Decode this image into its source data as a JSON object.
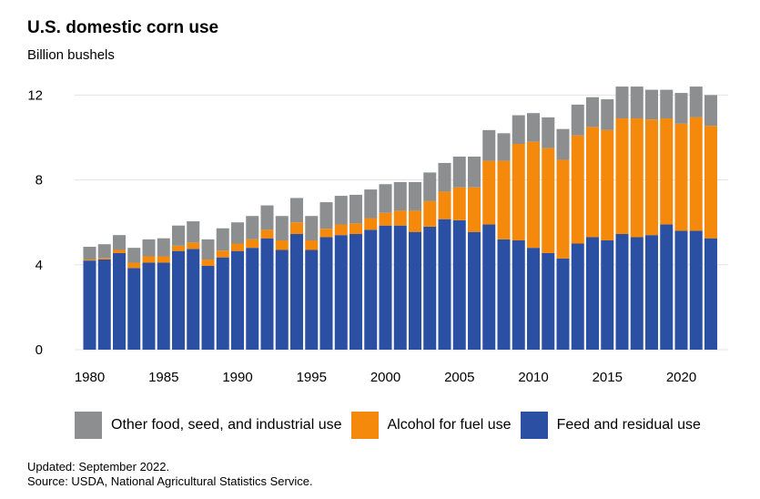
{
  "chart_data": {
    "type": "bar",
    "stacked": true,
    "title": "U.S. domestic corn use",
    "subtitle": "Billion bushels",
    "ylim": [
      0,
      12.4
    ],
    "yticks": [
      0,
      4,
      8,
      12
    ],
    "xticks": [
      1980,
      1985,
      1990,
      1995,
      2000,
      2005,
      2010,
      2015,
      2020
    ],
    "grid": true,
    "legend_position": "bottom",
    "categories": [
      1980,
      1981,
      1982,
      1983,
      1984,
      1985,
      1986,
      1987,
      1988,
      1989,
      1990,
      1991,
      1992,
      1993,
      1994,
      1995,
      1996,
      1997,
      1998,
      1999,
      2000,
      2001,
      2002,
      2003,
      2004,
      2005,
      2006,
      2007,
      2008,
      2009,
      2010,
      2011,
      2012,
      2013,
      2014,
      2015,
      2016,
      2017,
      2018,
      2019,
      2020,
      2021,
      2022
    ],
    "series": [
      {
        "name": "Feed and residual use",
        "color": "#2a4fa3",
        "values": [
          4.2,
          4.25,
          4.55,
          3.85,
          4.1,
          4.1,
          4.65,
          4.75,
          3.95,
          4.35,
          4.65,
          4.8,
          5.25,
          4.7,
          5.45,
          4.7,
          5.3,
          5.4,
          5.45,
          5.65,
          5.85,
          5.85,
          5.55,
          5.8,
          6.15,
          6.1,
          5.55,
          5.9,
          5.2,
          5.15,
          4.8,
          4.55,
          4.3,
          5.0,
          5.3,
          5.15,
          5.45,
          5.3,
          5.4,
          5.9,
          5.6,
          5.6,
          5.25
        ]
      },
      {
        "name": "Alcohol for fuel use",
        "color": "#f5890b",
        "values": [
          0.05,
          0.07,
          0.15,
          0.25,
          0.3,
          0.3,
          0.25,
          0.3,
          0.3,
          0.32,
          0.35,
          0.4,
          0.4,
          0.45,
          0.55,
          0.45,
          0.4,
          0.5,
          0.5,
          0.55,
          0.6,
          0.7,
          1.0,
          1.2,
          1.3,
          1.55,
          2.1,
          3.0,
          3.7,
          4.55,
          5.0,
          4.95,
          4.65,
          5.1,
          5.2,
          5.2,
          5.45,
          5.6,
          5.45,
          5.0,
          5.05,
          5.35,
          5.3
        ]
      },
      {
        "name": "Other food, seed, and industrial use",
        "color": "#8c8e90",
        "values": [
          0.6,
          0.65,
          0.7,
          0.7,
          0.8,
          0.85,
          0.95,
          1.0,
          0.95,
          1.05,
          1.0,
          1.1,
          1.15,
          1.15,
          1.15,
          1.15,
          1.25,
          1.35,
          1.35,
          1.35,
          1.35,
          1.35,
          1.35,
          1.35,
          1.35,
          1.45,
          1.45,
          1.45,
          1.3,
          1.35,
          1.35,
          1.45,
          1.45,
          1.45,
          1.4,
          1.45,
          1.5,
          1.5,
          1.4,
          1.35,
          1.45,
          1.45,
          1.45
        ]
      }
    ]
  },
  "legend": {
    "items": [
      {
        "label": "Other food, seed, and industrial use",
        "color": "#8c8e90"
      },
      {
        "label": "Alcohol for fuel use",
        "color": "#f5890b"
      },
      {
        "label": "Feed and residual use",
        "color": "#2a4fa3"
      }
    ]
  },
  "footer": {
    "updated": "Updated: September 2022.",
    "source": "Source: USDA, National Agricultural Statistics Service."
  }
}
